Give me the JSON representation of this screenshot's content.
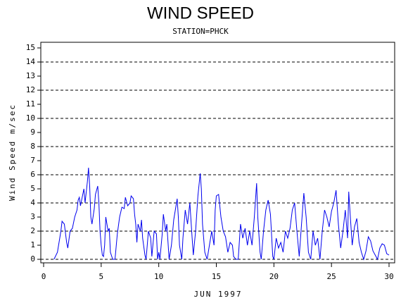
{
  "chart_data": {
    "type": "line",
    "title": "WIND SPEED",
    "subtitle": "STATION=PHCK",
    "x_label": "JUN 1997",
    "y_label": "Wind Speed m/sec",
    "xlim": [
      0,
      30
    ],
    "xticks": [
      0,
      5,
      10,
      15,
      20,
      25,
      30
    ],
    "ylim": [
      0,
      15
    ],
    "yticks": [
      0,
      1,
      2,
      3,
      4,
      5,
      6,
      7,
      8,
      9,
      10,
      11,
      12,
      13,
      14,
      15
    ],
    "grid_step": 2,
    "series": [
      {
        "name": "Wind Speed",
        "color": "#0000ee",
        "x": [
          0.9,
          1.2,
          1.5,
          1.6,
          1.8,
          2.0,
          2.1,
          2.3,
          2.5,
          2.7,
          2.9,
          3.0,
          3.1,
          3.2,
          3.3,
          3.5,
          3.6,
          3.8,
          3.9,
          4.0,
          4.1,
          4.2,
          4.4,
          4.5,
          4.7,
          4.8,
          4.9,
          5.0,
          5.1,
          5.2,
          5.3,
          5.4,
          5.6,
          5.7,
          5.8,
          6.0,
          6.2,
          6.4,
          6.6,
          6.8,
          7.0,
          7.1,
          7.3,
          7.5,
          7.6,
          7.8,
          7.9,
          8.0,
          8.1,
          8.2,
          8.4,
          8.5,
          8.6,
          8.8,
          8.9,
          9.1,
          9.3,
          9.4,
          9.6,
          9.8,
          9.9,
          10.0,
          10.1,
          10.3,
          10.4,
          10.6,
          10.7,
          10.9,
          11.1,
          11.3,
          11.5,
          11.6,
          11.7,
          11.8,
          12.0,
          12.1,
          12.3,
          12.5,
          12.7,
          12.9,
          13.0,
          13.2,
          13.4,
          13.6,
          13.7,
          13.8,
          14.0,
          14.2,
          14.4,
          14.6,
          14.8,
          14.9,
          15.0,
          15.2,
          15.4,
          15.6,
          15.8,
          16.0,
          16.2,
          16.4,
          16.5,
          16.7,
          16.9,
          17.1,
          17.3,
          17.5,
          17.7,
          17.9,
          18.1,
          18.3,
          18.5,
          18.6,
          18.8,
          18.9,
          19.1,
          19.3,
          19.5,
          19.7,
          19.9,
          20.0,
          20.2,
          20.4,
          20.6,
          20.8,
          21.0,
          21.2,
          21.4,
          21.6,
          21.8,
          22.0,
          22.2,
          22.4,
          22.6,
          22.8,
          23.0,
          23.2,
          23.4,
          23.6,
          23.8,
          24.0,
          24.2,
          24.4,
          24.6,
          24.8,
          25.0,
          25.2,
          25.4,
          25.6,
          25.8,
          26.0,
          26.2,
          26.4,
          26.5,
          26.6,
          26.8,
          27.0,
          27.2,
          27.4,
          27.6,
          27.8,
          28.0,
          28.2,
          28.4,
          28.6,
          28.8,
          29.0,
          29.2,
          29.4,
          29.6,
          29.8,
          30.0
        ],
        "values": [
          0,
          0.5,
          2,
          2.7,
          2.5,
          1.2,
          0.8,
          2,
          2.2,
          3,
          3.5,
          4.2,
          4.4,
          3.8,
          4.2,
          5,
          4,
          5.5,
          6.5,
          5.2,
          3,
          2.5,
          3.6,
          4.6,
          5.2,
          4,
          2,
          1,
          0.3,
          0.2,
          1,
          3,
          2,
          2.2,
          0.5,
          0,
          0,
          1.8,
          3,
          3.7,
          3.6,
          4.4,
          3.8,
          4,
          4.5,
          4.3,
          3.2,
          2.5,
          1.2,
          2.5,
          2,
          2.8,
          1.5,
          0.3,
          0,
          2,
          1.5,
          0.2,
          2,
          1.8,
          0,
          0.5,
          0,
          1.8,
          3.2,
          2,
          2.5,
          0,
          1,
          2.8,
          3.8,
          4.3,
          3,
          1,
          0,
          1.5,
          3.5,
          2.5,
          4,
          1.5,
          0.3,
          2,
          4.5,
          6.1,
          5,
          2.5,
          0.5,
          0,
          1,
          2,
          1,
          3.5,
          4.5,
          4.6,
          3,
          2,
          1.6,
          0.5,
          1.2,
          1,
          0.2,
          0,
          0,
          2.5,
          1.5,
          2.2,
          1,
          2,
          1,
          3,
          5.4,
          3,
          0.5,
          0,
          2,
          3.5,
          4.2,
          3.2,
          0.2,
          0,
          1.5,
          0.8,
          1.2,
          0.5,
          2,
          1.5,
          2.2,
          3.5,
          4,
          2,
          0.2,
          2.5,
          4.7,
          3,
          0.5,
          0,
          2,
          1,
          1.5,
          0,
          2,
          3.5,
          3,
          2.3,
          3.4,
          4,
          4.9,
          2.5,
          0.8,
          2,
          3.5,
          1.5,
          4.8,
          3.5,
          1,
          2.3,
          2.9,
          1.2,
          0.5,
          0,
          0.6,
          1.6,
          1.3,
          0.6,
          0.3,
          0,
          0.8,
          1.1,
          1,
          0.4,
          0.3
        ]
      }
    ]
  }
}
